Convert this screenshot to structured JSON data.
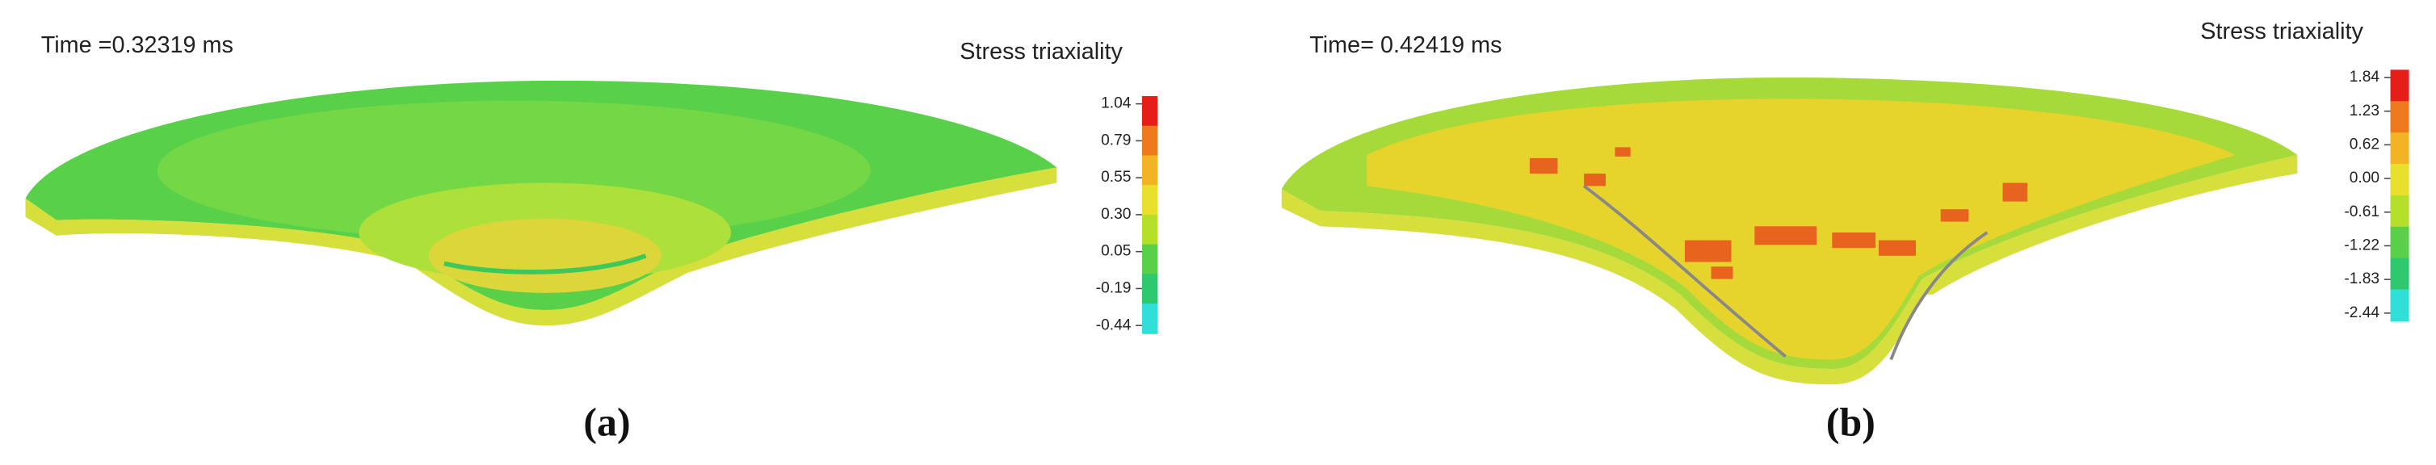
{
  "panels": [
    {
      "time": "Time =0.32319 ms",
      "legend": {
        "title": "Stress triaxiality",
        "ticks": [
          "1.04",
          "0.79",
          "0.55",
          "0.30",
          "0.05",
          "-0.19",
          "-0.44"
        ]
      },
      "caption": "(a)"
    },
    {
      "time": "Time= 0.42419 ms",
      "legend": {
        "title": "Stress triaxiality",
        "ticks": [
          "1.84",
          "1.23",
          "0.62",
          "0.00",
          "-0.61",
          "-1.22",
          "-1.83",
          "-2.44"
        ]
      },
      "caption": "(b)"
    }
  ]
}
